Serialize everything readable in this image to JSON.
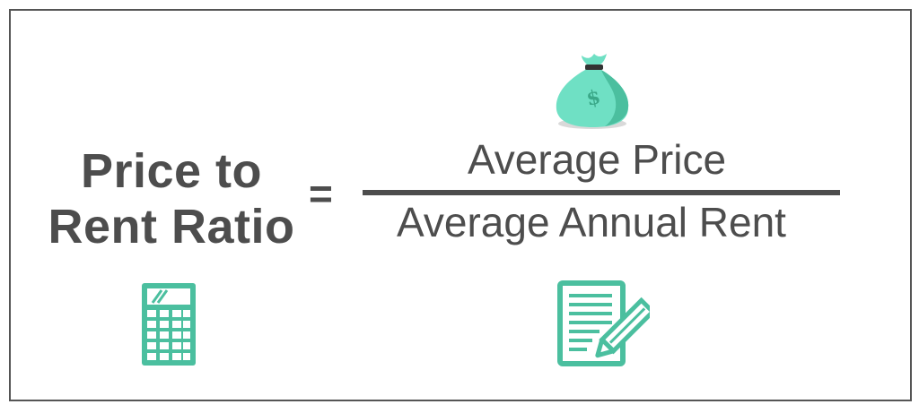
{
  "formula": {
    "lhs_line1": "Price to",
    "lhs_line2": "Rent Ratio",
    "operator": "=",
    "numerator": "Average Price",
    "denominator": "Average Annual Rent"
  },
  "icons": {
    "top": "money-bag-icon",
    "bottom_left": "calculator-icon",
    "bottom_right": "document-pencil-icon",
    "money_symbol": "$"
  },
  "colors": {
    "accent": "#4bbf9f",
    "accent_light": "#6fe0c4",
    "text": "#4d4d4d",
    "border": "#555555"
  }
}
